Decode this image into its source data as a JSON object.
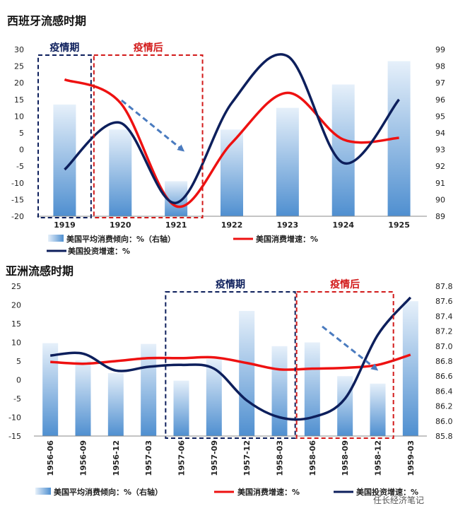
{
  "colors": {
    "bar_top": "#e6f0fa",
    "bar_bottom": "#4f8fd0",
    "consumption_line": "#ee1111",
    "investment_line": "#0d1f5c",
    "box_pre": "#0d1f5c",
    "box_post": "#d21a1a",
    "arrow": "#4a7bbf"
  },
  "watermark": "任长经济笔记",
  "chart_data": [
    {
      "type": "bar",
      "title": "西班牙流感时期",
      "categories": [
        "1919",
        "1920",
        "1921",
        "1922",
        "1923",
        "1924",
        "1925"
      ],
      "ylim_left": [
        -20,
        30
      ],
      "yticks_left": [
        "30",
        "25",
        "20",
        "15",
        "10",
        "5",
        "0",
        "-5",
        "-10",
        "-15",
        "-20"
      ],
      "ylim_right": [
        89,
        99
      ],
      "yticks_right": [
        "99",
        "98",
        "97",
        "96",
        "95",
        "94",
        "93",
        "92",
        "91",
        "90",
        "89"
      ],
      "series": [
        {
          "name": "美国平均消费倾向：%（右轴）",
          "kind": "bar",
          "axis": "right",
          "values": [
            95.7,
            94.2,
            91.1,
            94.2,
            95.5,
            96.9,
            98.3
          ]
        },
        {
          "name": "美国消费增速：%",
          "kind": "line",
          "axis": "left",
          "values": [
            21,
            14,
            -17,
            2,
            17,
            3,
            3.5
          ]
        },
        {
          "name": "美国投资增速：%",
          "kind": "line",
          "axis": "left",
          "values": [
            -6,
            8,
            -16,
            14,
            28,
            -4,
            15
          ]
        }
      ],
      "periods": [
        {
          "label": "疫情期",
          "from": "1919",
          "to": "1919"
        },
        {
          "label": "疫情后",
          "from": "1920",
          "to": "1921"
        }
      ],
      "legend_position": "bottom",
      "grid": false
    },
    {
      "type": "bar",
      "title": "亚洲流感时期",
      "categories": [
        "1956-06",
        "1956-09",
        "1956-12",
        "1957-03",
        "1957-06",
        "1957-09",
        "1957-12",
        "1958-03",
        "1958-06",
        "1958-09",
        "1958-12",
        "1959-03"
      ],
      "ylim_left": [
        -15,
        25
      ],
      "yticks_left": [
        "25",
        "20",
        "15",
        "10",
        "5",
        "0",
        "-5",
        "-10",
        "-15"
      ],
      "ylim_right": [
        85.8,
        87.8
      ],
      "yticks_right": [
        "87.8",
        "87.6",
        "87.4",
        "87.2",
        "87.0",
        "86.8",
        "86.6",
        "86.4",
        "86.2",
        "86.0",
        "85.8"
      ],
      "series": [
        {
          "name": "美国平均消费倾向：%（右轴）",
          "kind": "bar",
          "axis": "right",
          "values": [
            87.04,
            86.81,
            86.64,
            87.03,
            86.54,
            86.83,
            87.47,
            87.0,
            87.05,
            86.6,
            86.5,
            87.6
          ]
        },
        {
          "name": "美国消费增速：%",
          "kind": "line",
          "axis": "left",
          "values": [
            4.8,
            4.3,
            5,
            5.8,
            5.8,
            6,
            4.5,
            2.8,
            3,
            3.2,
            4,
            6.7
          ]
        },
        {
          "name": "美国投资增速：%",
          "kind": "line",
          "axis": "left",
          "values": [
            6.5,
            7,
            2.5,
            3.5,
            4,
            3,
            -5.5,
            -10,
            -10,
            -5,
            12,
            22
          ]
        }
      ],
      "periods": [
        {
          "label": "疫情期",
          "from": "1957-06",
          "to": "1958-03"
        },
        {
          "label": "疫情后",
          "from": "1958-06",
          "to": "1958-12"
        }
      ],
      "legend_position": "bottom",
      "grid": false
    }
  ]
}
